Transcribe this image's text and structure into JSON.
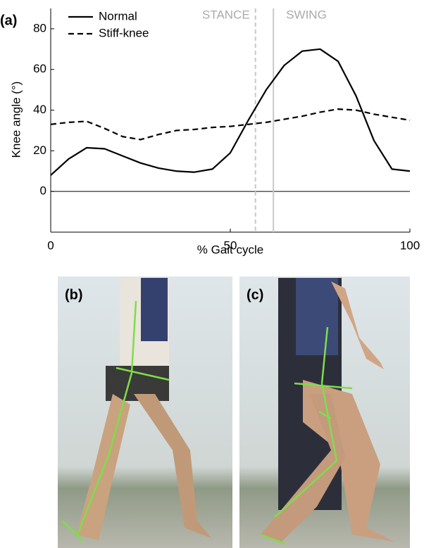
{
  "chart_data": {
    "type": "line",
    "panel_label": "(a)",
    "x": [
      0,
      5,
      10,
      15,
      20,
      25,
      30,
      35,
      40,
      45,
      50,
      55,
      60,
      65,
      70,
      75,
      80,
      85,
      90,
      95,
      100
    ],
    "series": [
      {
        "name": "Normal",
        "color": "#000000",
        "dash": "solid",
        "values": [
          8,
          16,
          21.5,
          21,
          17.5,
          14,
          11.5,
          10,
          9.5,
          11,
          19,
          35,
          50,
          62,
          69,
          70,
          64,
          47,
          25,
          11,
          10
        ]
      },
      {
        "name": "Stiff-knee",
        "color": "#000000",
        "dash": "dashed",
        "values": [
          33,
          34,
          34.5,
          31,
          27,
          25.5,
          28,
          30,
          30.5,
          31.5,
          32,
          33,
          34,
          35.5,
          37,
          39,
          40.5,
          40,
          38,
          36.5,
          35
        ]
      }
    ],
    "xlim": [
      0,
      100
    ],
    "ylim": [
      -20,
      90
    ],
    "xticks": [
      0,
      50,
      100
    ],
    "yticks": [
      0,
      20,
      40,
      60,
      80
    ],
    "xlabel": "% Gait cycle",
    "ylabel": "Knee angle (°)",
    "zero_line": true,
    "legend": "upper left",
    "phase_lines": [
      {
        "x": 57,
        "style": "dashed",
        "color": "#c8c8c8"
      },
      {
        "x": 62,
        "style": "solid",
        "color": "#c8c8c8"
      }
    ],
    "phase_labels": [
      "STANCE",
      "SWING"
    ]
  },
  "photos": [
    "(b)",
    "(c)"
  ]
}
